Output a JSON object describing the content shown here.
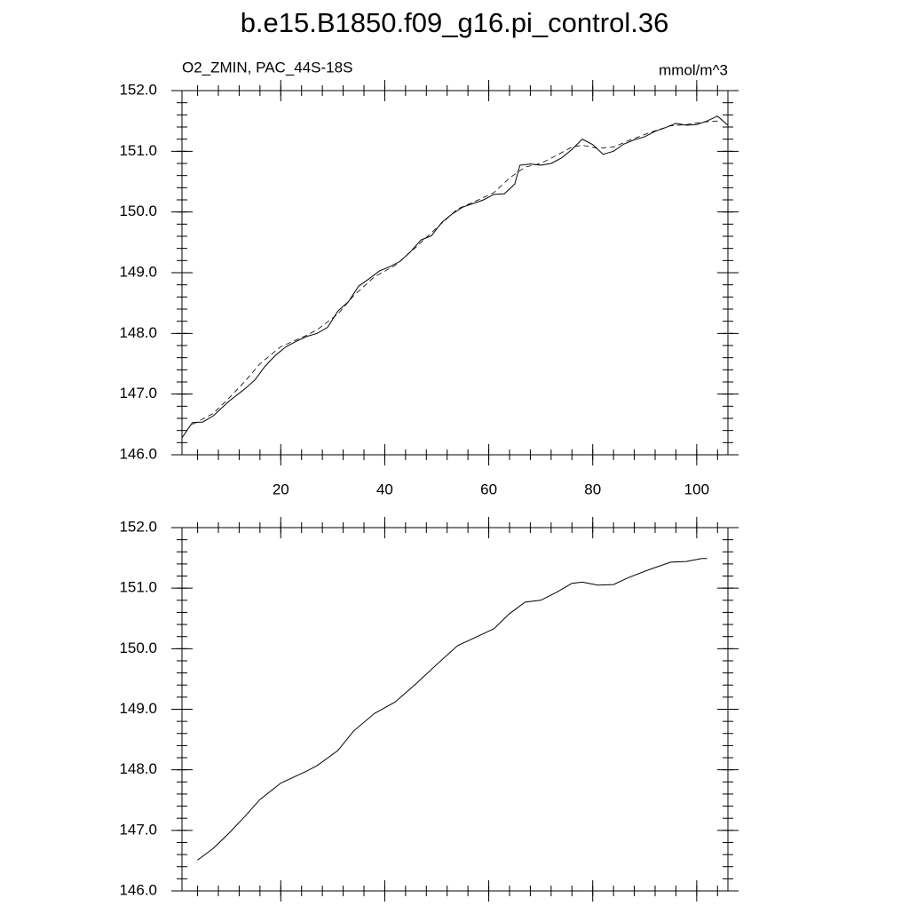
{
  "title": "b.e15.B1850.f09_g16.pi_control.36",
  "chart_data": [
    {
      "type": "line",
      "subtitle": "O2_ZMIN, PAC_44S-18S",
      "units": "mmol/m^3",
      "xlim": [
        1,
        106
      ],
      "ylim": [
        146,
        152
      ],
      "xticks": [
        20,
        40,
        60,
        80,
        100
      ],
      "yticks": [
        {
          "value": 146,
          "label": "146.0"
        },
        {
          "value": 147,
          "label": "147.0"
        },
        {
          "value": 148,
          "label": "148.0"
        },
        {
          "value": 149,
          "label": "149.0"
        },
        {
          "value": 150,
          "label": "150.0"
        },
        {
          "value": 151,
          "label": "151.0"
        },
        {
          "value": 152,
          "label": "152.0"
        }
      ],
      "series": [
        {
          "color": "#000000",
          "line_style": "solid",
          "x": [
            1,
            3,
            5,
            7,
            10,
            13,
            15,
            17,
            19,
            21,
            23,
            25,
            27,
            29,
            31,
            33,
            35,
            37,
            39,
            41,
            43,
            45,
            47,
            49,
            51,
            53,
            55,
            57,
            59,
            61,
            63,
            65,
            66,
            68,
            70,
            72,
            74,
            76,
            78,
            80,
            82,
            84,
            86,
            88,
            90,
            92,
            94,
            96,
            98,
            100,
            102,
            104,
            106
          ],
          "values": [
            146.28,
            146.53,
            146.54,
            146.64,
            146.88,
            147.08,
            147.23,
            147.46,
            147.64,
            147.78,
            147.87,
            147.95,
            148.0,
            148.1,
            148.37,
            148.52,
            148.78,
            148.9,
            149.03,
            149.1,
            149.19,
            149.35,
            149.54,
            149.61,
            149.83,
            149.97,
            150.08,
            150.14,
            150.2,
            150.29,
            150.3,
            150.46,
            150.77,
            150.79,
            150.77,
            150.8,
            150.89,
            151.03,
            151.2,
            151.11,
            150.95,
            151.0,
            151.12,
            151.19,
            151.24,
            151.33,
            151.39,
            151.46,
            151.43,
            151.44,
            151.5,
            151.58,
            151.43
          ]
        },
        {
          "color": "#000000",
          "line_style": "dashed",
          "x": [
            3,
            7,
            10,
            13,
            16,
            20,
            25,
            27,
            31,
            34,
            38,
            42,
            46,
            50,
            54,
            58,
            61,
            64,
            67,
            70,
            73,
            76,
            78,
            81,
            84,
            87,
            91,
            95,
            98,
            101,
            104
          ],
          "values": [
            146.5,
            146.68,
            146.93,
            147.2,
            147.5,
            147.78,
            147.97,
            148.06,
            148.32,
            148.62,
            148.93,
            149.12,
            149.42,
            149.74,
            150.05,
            150.2,
            150.32,
            150.56,
            150.74,
            150.8,
            150.93,
            151.07,
            151.1,
            151.05,
            151.07,
            151.18,
            151.31,
            151.42,
            151.44,
            151.48,
            151.5
          ]
        }
      ]
    },
    {
      "type": "line",
      "xlim": [
        1,
        106
      ],
      "ylim": [
        146,
        152
      ],
      "xticks": [
        20,
        40,
        60,
        80,
        100
      ],
      "yticks": [
        {
          "value": 146,
          "label": "146.0"
        },
        {
          "value": 147,
          "label": "147.0"
        },
        {
          "value": 148,
          "label": "148.0"
        },
        {
          "value": 149,
          "label": "149.0"
        },
        {
          "value": 150,
          "label": "150.0"
        },
        {
          "value": 151,
          "label": "151.0"
        },
        {
          "value": 152,
          "label": "152.0"
        }
      ],
      "series": [
        {
          "color": "#000000",
          "line_style": "solid",
          "x": [
            4,
            7,
            10,
            13,
            16,
            20,
            25,
            27,
            31,
            34,
            38,
            42,
            46,
            50,
            54,
            58,
            61,
            64,
            67,
            70,
            73,
            76,
            78,
            81,
            84,
            87,
            91,
            95,
            98,
            101,
            102
          ],
          "values": [
            146.51,
            146.7,
            146.95,
            147.22,
            147.51,
            147.78,
            147.98,
            148.07,
            148.32,
            148.64,
            148.93,
            149.12,
            149.42,
            149.74,
            150.05,
            150.21,
            150.33,
            150.58,
            150.77,
            150.8,
            150.93,
            151.08,
            151.1,
            151.05,
            151.06,
            151.18,
            151.31,
            151.43,
            151.44,
            151.49,
            151.49
          ]
        }
      ]
    }
  ]
}
